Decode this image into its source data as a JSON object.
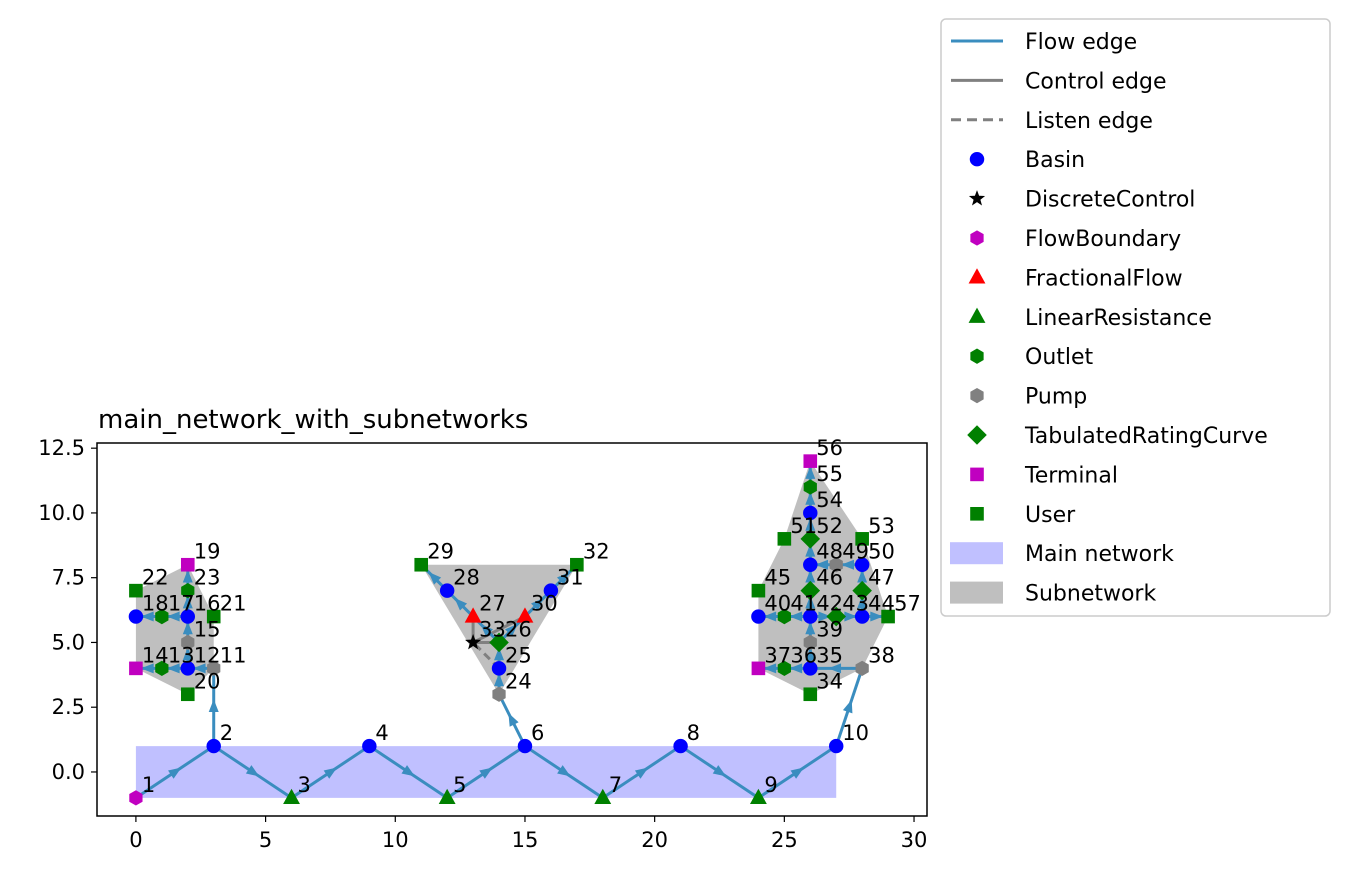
{
  "title": "main_network_with_subnetworks",
  "colors": {
    "flow": "#3a8dbf",
    "control": "#808080",
    "listen": "#808080",
    "main_network_fill": "#c0c0ff",
    "subnetwork_fill": "#bfbfbf",
    "Basin": "#0000ff",
    "DiscreteControl": "#000000",
    "FlowBoundary": "#c000c0",
    "FractionalFlow": "#ff0000",
    "LinearResistance": "#008000",
    "Outlet": "#008000",
    "Pump": "#808080",
    "TabulatedRatingCurve": "#008000",
    "Terminal": "#c000c0",
    "User": "#008000"
  },
  "chart_data": {
    "type": "scatter",
    "title": "main_network_with_subnetworks",
    "xlim": [
      -1.5,
      30.5
    ],
    "ylim": [
      -1.7,
      12.7
    ],
    "xticks": [
      "0",
      "5",
      "10",
      "15",
      "20",
      "25",
      "30"
    ],
    "yticks": [
      "0.0",
      "2.5",
      "5.0",
      "7.5",
      "10.0",
      "12.5"
    ],
    "grid": false,
    "legend_placement": "outside-right",
    "nodes": [
      {
        "id": "1",
        "x": 0,
        "y": -1,
        "type": "FlowBoundary"
      },
      {
        "id": "2",
        "x": 3,
        "y": 1,
        "type": "Basin"
      },
      {
        "id": "3",
        "x": 6,
        "y": -1,
        "type": "LinearResistance"
      },
      {
        "id": "4",
        "x": 9,
        "y": 1,
        "type": "Basin"
      },
      {
        "id": "5",
        "x": 12,
        "y": -1,
        "type": "LinearResistance"
      },
      {
        "id": "6",
        "x": 15,
        "y": 1,
        "type": "Basin"
      },
      {
        "id": "7",
        "x": 18,
        "y": -1,
        "type": "LinearResistance"
      },
      {
        "id": "8",
        "x": 21,
        "y": 1,
        "type": "Basin"
      },
      {
        "id": "9",
        "x": 24,
        "y": -1,
        "type": "LinearResistance"
      },
      {
        "id": "10",
        "x": 27,
        "y": 1,
        "type": "Basin"
      },
      {
        "id": "11",
        "x": 3,
        "y": 4,
        "type": "Pump"
      },
      {
        "id": "12",
        "x": 2,
        "y": 4,
        "type": "Basin"
      },
      {
        "id": "13",
        "x": 1,
        "y": 4,
        "type": "Outlet"
      },
      {
        "id": "14",
        "x": 0,
        "y": 4,
        "type": "Terminal"
      },
      {
        "id": "15",
        "x": 2,
        "y": 5,
        "type": "Pump"
      },
      {
        "id": "16",
        "x": 2,
        "y": 6,
        "type": "Basin"
      },
      {
        "id": "17",
        "x": 1,
        "y": 6,
        "type": "Outlet"
      },
      {
        "id": "18",
        "x": 0,
        "y": 6,
        "type": "Basin"
      },
      {
        "id": "19",
        "x": 2,
        "y": 8,
        "type": "Terminal"
      },
      {
        "id": "20",
        "x": 2,
        "y": 3,
        "type": "User"
      },
      {
        "id": "21",
        "x": 3,
        "y": 6,
        "type": "User"
      },
      {
        "id": "22",
        "x": 0,
        "y": 7,
        "type": "User"
      },
      {
        "id": "23",
        "x": 2,
        "y": 7,
        "type": "Outlet"
      },
      {
        "id": "24",
        "x": 14,
        "y": 3,
        "type": "Pump"
      },
      {
        "id": "25",
        "x": 14,
        "y": 4,
        "type": "Basin"
      },
      {
        "id": "26",
        "x": 14,
        "y": 5,
        "type": "TabulatedRatingCurve"
      },
      {
        "id": "27",
        "x": 13,
        "y": 6,
        "type": "FractionalFlow"
      },
      {
        "id": "28",
        "x": 12,
        "y": 7,
        "type": "Basin"
      },
      {
        "id": "29",
        "x": 11,
        "y": 8,
        "type": "User"
      },
      {
        "id": "30",
        "x": 15,
        "y": 6,
        "type": "FractionalFlow"
      },
      {
        "id": "31",
        "x": 16,
        "y": 7,
        "type": "Basin"
      },
      {
        "id": "32",
        "x": 17,
        "y": 8,
        "type": "User"
      },
      {
        "id": "33",
        "x": 13,
        "y": 5,
        "type": "DiscreteControl"
      },
      {
        "id": "34",
        "x": 26,
        "y": 3,
        "type": "User"
      },
      {
        "id": "35",
        "x": 26,
        "y": 4,
        "type": "Basin"
      },
      {
        "id": "36",
        "x": 25,
        "y": 4,
        "type": "Outlet"
      },
      {
        "id": "37",
        "x": 24,
        "y": 4,
        "type": "Terminal"
      },
      {
        "id": "38",
        "x": 28,
        "y": 4,
        "type": "Pump"
      },
      {
        "id": "39",
        "x": 26,
        "y": 5,
        "type": "Pump"
      },
      {
        "id": "40",
        "x": 24,
        "y": 6,
        "type": "Basin"
      },
      {
        "id": "41",
        "x": 25,
        "y": 6,
        "type": "Outlet"
      },
      {
        "id": "42",
        "x": 26,
        "y": 6,
        "type": "Basin"
      },
      {
        "id": "43",
        "x": 27,
        "y": 6,
        "type": "TabulatedRatingCurve"
      },
      {
        "id": "44",
        "x": 28,
        "y": 6,
        "type": "Basin"
      },
      {
        "id": "45",
        "x": 24,
        "y": 7,
        "type": "User"
      },
      {
        "id": "46",
        "x": 26,
        "y": 7,
        "type": "TabulatedRatingCurve"
      },
      {
        "id": "47",
        "x": 28,
        "y": 7,
        "type": "TabulatedRatingCurve"
      },
      {
        "id": "48",
        "x": 26,
        "y": 8,
        "type": "Basin"
      },
      {
        "id": "49",
        "x": 27,
        "y": 8,
        "type": "Pump"
      },
      {
        "id": "50",
        "x": 28,
        "y": 8,
        "type": "Basin"
      },
      {
        "id": "51",
        "x": 25,
        "y": 9,
        "type": "User"
      },
      {
        "id": "52",
        "x": 26,
        "y": 9,
        "type": "TabulatedRatingCurve"
      },
      {
        "id": "53",
        "x": 28,
        "y": 9,
        "type": "User"
      },
      {
        "id": "54",
        "x": 26,
        "y": 10,
        "type": "Basin"
      },
      {
        "id": "55",
        "x": 26,
        "y": 11,
        "type": "Outlet"
      },
      {
        "id": "56",
        "x": 26,
        "y": 12,
        "type": "Terminal"
      },
      {
        "id": "57",
        "x": 29,
        "y": 6,
        "type": "User"
      }
    ],
    "flow_edges": [
      [
        "1",
        "2"
      ],
      [
        "2",
        "3"
      ],
      [
        "3",
        "4"
      ],
      [
        "4",
        "5"
      ],
      [
        "5",
        "6"
      ],
      [
        "6",
        "7"
      ],
      [
        "7",
        "8"
      ],
      [
        "8",
        "9"
      ],
      [
        "9",
        "10"
      ],
      [
        "2",
        "11"
      ],
      [
        "11",
        "12"
      ],
      [
        "12",
        "13"
      ],
      [
        "13",
        "14"
      ],
      [
        "12",
        "15"
      ],
      [
        "15",
        "16"
      ],
      [
        "16",
        "17"
      ],
      [
        "17",
        "18"
      ],
      [
        "16",
        "23"
      ],
      [
        "23",
        "19"
      ],
      [
        "6",
        "24"
      ],
      [
        "24",
        "25"
      ],
      [
        "25",
        "26"
      ],
      [
        "26",
        "27"
      ],
      [
        "27",
        "28"
      ],
      [
        "28",
        "29"
      ],
      [
        "26",
        "30"
      ],
      [
        "30",
        "31"
      ],
      [
        "31",
        "32"
      ],
      [
        "10",
        "38"
      ],
      [
        "38",
        "35"
      ],
      [
        "35",
        "36"
      ],
      [
        "36",
        "37"
      ],
      [
        "35",
        "39"
      ],
      [
        "39",
        "42"
      ],
      [
        "42",
        "41"
      ],
      [
        "41",
        "40"
      ],
      [
        "42",
        "43"
      ],
      [
        "43",
        "44"
      ],
      [
        "44",
        "57"
      ],
      [
        "44",
        "47"
      ],
      [
        "47",
        "50"
      ],
      [
        "50",
        "49"
      ],
      [
        "49",
        "48"
      ],
      [
        "48",
        "52"
      ],
      [
        "52",
        "54"
      ],
      [
        "54",
        "55"
      ],
      [
        "55",
        "56"
      ],
      [
        "42",
        "46"
      ],
      [
        "46",
        "48"
      ]
    ],
    "control_edges": [
      [
        "33",
        "26"
      ],
      [
        "33",
        "27"
      ],
      [
        "33",
        "30"
      ]
    ],
    "listen_edges": [
      [
        "25",
        "33"
      ]
    ],
    "main_network": [
      [
        0,
        -1
      ],
      [
        27,
        -1
      ],
      [
        27,
        1
      ],
      [
        0,
        1
      ]
    ],
    "subnetworks": [
      [
        [
          0,
          4
        ],
        [
          2,
          3
        ],
        [
          3,
          4
        ],
        [
          3,
          6
        ],
        [
          2,
          8
        ],
        [
          0,
          7
        ]
      ],
      [
        [
          14,
          3
        ],
        [
          17,
          8
        ],
        [
          11,
          8
        ]
      ],
      [
        [
          26,
          3
        ],
        [
          28,
          4
        ],
        [
          29,
          6
        ],
        [
          28,
          9
        ],
        [
          26,
          12
        ],
        [
          25,
          9
        ],
        [
          24,
          7
        ],
        [
          24,
          4
        ]
      ]
    ]
  },
  "legend": [
    {
      "label": "Flow edge",
      "kind": "line-solid",
      "color_key": "flow"
    },
    {
      "label": "Control edge",
      "kind": "line-solid",
      "color_key": "control"
    },
    {
      "label": "Listen edge",
      "kind": "line-dashed",
      "color_key": "listen"
    },
    {
      "label": "Basin",
      "kind": "marker",
      "marker": "circle",
      "color_key": "Basin"
    },
    {
      "label": "DiscreteControl",
      "kind": "marker",
      "marker": "star",
      "color_key": "DiscreteControl"
    },
    {
      "label": "FlowBoundary",
      "kind": "marker",
      "marker": "hexagon",
      "color_key": "FlowBoundary"
    },
    {
      "label": "FractionalFlow",
      "kind": "marker",
      "marker": "triangle",
      "color_key": "FractionalFlow"
    },
    {
      "label": "LinearResistance",
      "kind": "marker",
      "marker": "triangle",
      "color_key": "LinearResistance"
    },
    {
      "label": "Outlet",
      "kind": "marker",
      "marker": "hexagon",
      "color_key": "Outlet"
    },
    {
      "label": "Pump",
      "kind": "marker",
      "marker": "hexagon",
      "color_key": "Pump"
    },
    {
      "label": "TabulatedRatingCurve",
      "kind": "marker",
      "marker": "diamond",
      "color_key": "TabulatedRatingCurve"
    },
    {
      "label": "Terminal",
      "kind": "marker",
      "marker": "square",
      "color_key": "Terminal"
    },
    {
      "label": "User",
      "kind": "marker",
      "marker": "square",
      "color_key": "User"
    },
    {
      "label": "Main network",
      "kind": "patch",
      "color_key": "main_network_fill"
    },
    {
      "label": "Subnetwork",
      "kind": "patch",
      "color_key": "subnetwork_fill"
    }
  ]
}
